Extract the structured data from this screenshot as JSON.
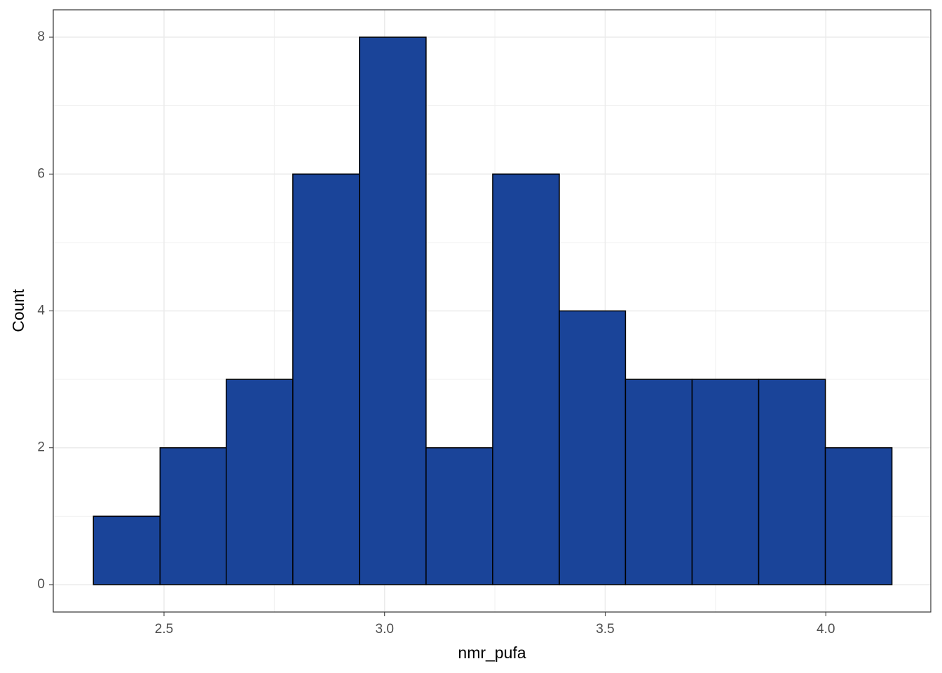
{
  "chart_data": {
    "type": "histogram",
    "x_label": "nmr_pufa",
    "y_label": "Count",
    "bins": [
      2.34,
      2.491,
      2.641,
      2.792,
      2.943,
      3.094,
      3.245,
      3.396,
      3.546,
      3.697,
      3.848,
      3.999,
      4.15
    ],
    "values": [
      1,
      2,
      3,
      6,
      8,
      2,
      6,
      4,
      3,
      3,
      3,
      2
    ],
    "color": "#1a4499",
    "edge_color": "#000000",
    "xlim": [
      2.249,
      4.238
    ],
    "xticks": [
      2.5,
      {
        "value": 3,
        "label": "3.0"
      },
      3.5,
      {
        "value": 4,
        "label": "4.0"
      }
    ],
    "ylim": [
      -0.4,
      8.4
    ],
    "yticks": [
      0,
      2,
      4,
      6,
      8
    ],
    "grid": true,
    "minor_grid": true
  }
}
